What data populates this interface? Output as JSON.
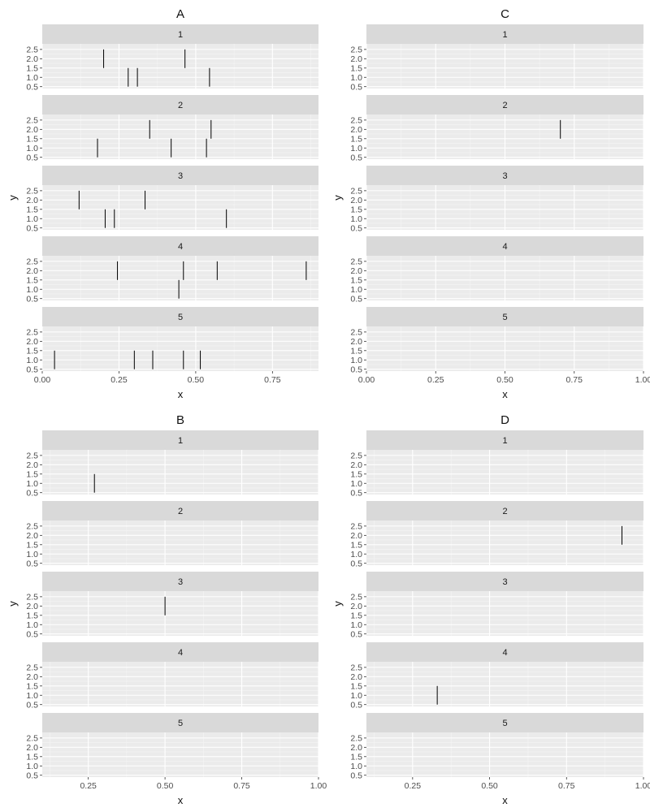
{
  "chart_data": [
    {
      "type": "segment",
      "title": "A",
      "xlabel": "x",
      "ylabel": "y",
      "xlim": [
        0,
        0.9
      ],
      "x_ticks": [
        0,
        0.25,
        0.5,
        0.75
      ],
      "x_tick_labels": [
        "0.00",
        "0.25",
        "0.50",
        "0.75"
      ],
      "ylim": [
        0.4,
        2.8
      ],
      "y_ticks": [
        0.5,
        1.0,
        1.5,
        2.0,
        2.5
      ],
      "y_tick_labels": [
        "0.5",
        "1.0",
        "1.5",
        "2.0",
        "2.5"
      ],
      "facets": [
        {
          "label": "1",
          "segments": [
            {
              "x": 0.2,
              "y0": 1.5,
              "y1": 2.5
            },
            {
              "x": 0.465,
              "y0": 1.5,
              "y1": 2.5
            },
            {
              "x": 0.28,
              "y0": 0.5,
              "y1": 1.5
            },
            {
              "x": 0.31,
              "y0": 0.5,
              "y1": 1.5
            },
            {
              "x": 0.545,
              "y0": 0.5,
              "y1": 1.5
            }
          ]
        },
        {
          "label": "2",
          "segments": [
            {
              "x": 0.35,
              "y0": 1.5,
              "y1": 2.5
            },
            {
              "x": 0.55,
              "y0": 1.5,
              "y1": 2.5
            },
            {
              "x": 0.18,
              "y0": 0.5,
              "y1": 1.5
            },
            {
              "x": 0.42,
              "y0": 0.5,
              "y1": 1.5
            },
            {
              "x": 0.535,
              "y0": 0.5,
              "y1": 1.5
            }
          ]
        },
        {
          "label": "3",
          "segments": [
            {
              "x": 0.12,
              "y0": 1.5,
              "y1": 2.5
            },
            {
              "x": 0.335,
              "y0": 1.5,
              "y1": 2.5
            },
            {
              "x": 0.205,
              "y0": 0.5,
              "y1": 1.5
            },
            {
              "x": 0.235,
              "y0": 0.5,
              "y1": 1.5
            },
            {
              "x": 0.6,
              "y0": 0.5,
              "y1": 1.5
            }
          ]
        },
        {
          "label": "4",
          "segments": [
            {
              "x": 0.245,
              "y0": 1.5,
              "y1": 2.5
            },
            {
              "x": 0.46,
              "y0": 1.5,
              "y1": 2.5
            },
            {
              "x": 0.57,
              "y0": 1.5,
              "y1": 2.5
            },
            {
              "x": 0.86,
              "y0": 1.5,
              "y1": 2.5
            },
            {
              "x": 0.445,
              "y0": 0.5,
              "y1": 1.5
            }
          ]
        },
        {
          "label": "5",
          "segments": [
            {
              "x": 0.04,
              "y0": 0.5,
              "y1": 1.5
            },
            {
              "x": 0.3,
              "y0": 0.5,
              "y1": 1.5
            },
            {
              "x": 0.36,
              "y0": 0.5,
              "y1": 1.5
            },
            {
              "x": 0.46,
              "y0": 0.5,
              "y1": 1.5
            },
            {
              "x": 0.515,
              "y0": 0.5,
              "y1": 1.5
            }
          ]
        }
      ]
    },
    {
      "type": "segment",
      "title": "C",
      "xlabel": "x",
      "ylabel": "y",
      "xlim": [
        0,
        1.0
      ],
      "x_ticks": [
        0,
        0.25,
        0.5,
        0.75,
        1.0
      ],
      "x_tick_labels": [
        "0.00",
        "0.25",
        "0.50",
        "0.75",
        "1.00"
      ],
      "ylim": [
        0.4,
        2.8
      ],
      "y_ticks": [
        0.5,
        1.0,
        1.5,
        2.0,
        2.5
      ],
      "y_tick_labels": [
        "0.5",
        "1.0",
        "1.5",
        "2.0",
        "2.5"
      ],
      "facets": [
        {
          "label": "1",
          "segments": []
        },
        {
          "label": "2",
          "segments": [
            {
              "x": 0.7,
              "y0": 1.5,
              "y1": 2.5
            }
          ]
        },
        {
          "label": "3",
          "segments": []
        },
        {
          "label": "4",
          "segments": []
        },
        {
          "label": "5",
          "segments": []
        }
      ]
    },
    {
      "type": "segment",
      "title": "B",
      "xlabel": "x",
      "ylabel": "y",
      "xlim": [
        0.1,
        1.0
      ],
      "x_ticks": [
        0.25,
        0.5,
        0.75,
        1.0
      ],
      "x_tick_labels": [
        "0.25",
        "0.50",
        "0.75",
        "1.00"
      ],
      "ylim": [
        0.4,
        2.8
      ],
      "y_ticks": [
        0.5,
        1.0,
        1.5,
        2.0,
        2.5
      ],
      "y_tick_labels": [
        "0.5",
        "1.0",
        "1.5",
        "2.0",
        "2.5"
      ],
      "facets": [
        {
          "label": "1",
          "segments": [
            {
              "x": 0.27,
              "y0": 0.5,
              "y1": 1.5
            }
          ]
        },
        {
          "label": "2",
          "segments": []
        },
        {
          "label": "3",
          "segments": [
            {
              "x": 0.5,
              "y0": 1.5,
              "y1": 2.5
            }
          ]
        },
        {
          "label": "4",
          "segments": []
        },
        {
          "label": "5",
          "segments": []
        }
      ]
    },
    {
      "type": "segment",
      "title": "D",
      "xlabel": "x",
      "ylabel": "y",
      "xlim": [
        0.1,
        1.0
      ],
      "x_ticks": [
        0.25,
        0.5,
        0.75,
        1.0
      ],
      "x_tick_labels": [
        "0.25",
        "0.50",
        "0.75",
        "1.00"
      ],
      "ylim": [
        0.4,
        2.8
      ],
      "y_ticks": [
        0.5,
        1.0,
        1.5,
        2.0,
        2.5
      ],
      "y_tick_labels": [
        "0.5",
        "1.0",
        "1.5",
        "2.0",
        "2.5"
      ],
      "facets": [
        {
          "label": "1",
          "segments": []
        },
        {
          "label": "2",
          "segments": [
            {
              "x": 0.93,
              "y0": 1.5,
              "y1": 2.5
            }
          ]
        },
        {
          "label": "3",
          "segments": []
        },
        {
          "label": "4",
          "segments": [
            {
              "x": 0.33,
              "y0": 0.5,
              "y1": 1.5
            }
          ]
        },
        {
          "label": "5",
          "segments": []
        }
      ]
    }
  ],
  "colors": {
    "panel_bg": "#ebebeb",
    "strip_bg": "#d9d9d9",
    "grid_major": "#ffffff",
    "grid_minor": "#f5f5f5",
    "segment": "#000000",
    "tick": "#333333"
  }
}
